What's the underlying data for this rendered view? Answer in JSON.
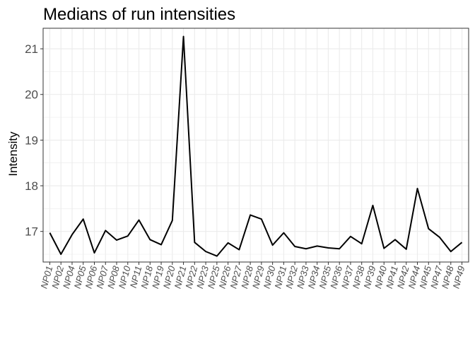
{
  "chart_data": {
    "type": "line",
    "title": "Medians of run intensities",
    "xlabel": "",
    "ylabel": "Intensity",
    "categories": [
      "NP01",
      "NP02",
      "NP04",
      "NP05",
      "NP06",
      "NP07",
      "NP08",
      "NP10",
      "NP11",
      "NP18",
      "NP19",
      "NP20",
      "NP21",
      "NP22",
      "NP23",
      "NP25",
      "NP26",
      "NP27",
      "NP28",
      "NP29",
      "NP30",
      "NP31",
      "NP32",
      "NP33",
      "NP34",
      "NP35",
      "NP36",
      "NP37",
      "NP38",
      "NP39",
      "NP40",
      "NP41",
      "NP42",
      "NP44",
      "NP45",
      "NP47",
      "NP48",
      "NP49"
    ],
    "series": [
      {
        "name": "",
        "color": "#000000",
        "values": [
          16.97,
          16.5,
          16.93,
          17.27,
          16.53,
          17.02,
          16.81,
          16.9,
          17.25,
          16.82,
          16.71,
          17.24,
          21.27,
          16.76,
          16.56,
          16.46,
          16.75,
          16.6,
          17.36,
          17.27,
          16.7,
          16.97,
          16.67,
          16.62,
          16.68,
          16.64,
          16.62,
          16.89,
          16.73,
          17.57,
          16.63,
          16.82,
          16.61,
          17.94,
          17.06,
          16.87,
          16.56,
          16.76
        ]
      }
    ],
    "yticks": [
      17,
      18,
      19,
      20,
      21
    ],
    "ylim": [
      16.33,
      21.45
    ],
    "grid": true,
    "legend": "none",
    "colors": {
      "line": "#000000",
      "grid": "#ebebeb",
      "border": "#333333",
      "background": "#ffffff"
    }
  }
}
